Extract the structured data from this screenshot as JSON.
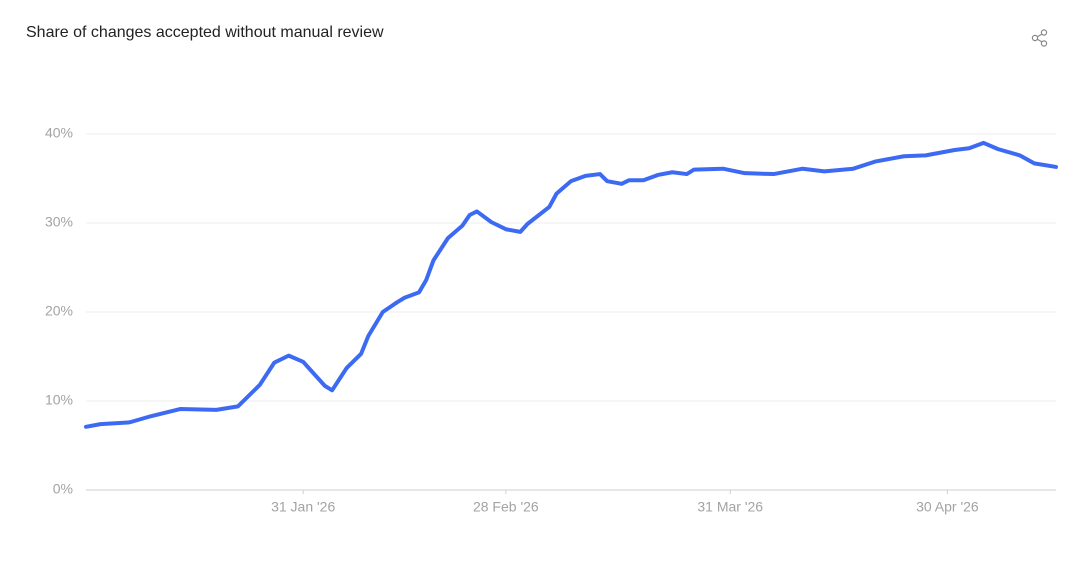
{
  "chart_data": {
    "type": "line",
    "title": "Share of changes accepted without manual review",
    "x": [
      "2026-01-01",
      "2026-01-03",
      "2026-01-07",
      "2026-01-10",
      "2026-01-14",
      "2026-01-19",
      "2026-01-22",
      "2026-01-25",
      "2026-01-27",
      "2026-01-29",
      "2026-01-31",
      "2026-02-01",
      "2026-02-03",
      "2026-02-04",
      "2026-02-06",
      "2026-02-08",
      "2026-02-09",
      "2026-02-11",
      "2026-02-13",
      "2026-02-14",
      "2026-02-16",
      "2026-02-17",
      "2026-02-18",
      "2026-02-20",
      "2026-02-22",
      "2026-02-23",
      "2026-02-24",
      "2026-02-26",
      "2026-02-28",
      "2026-03-02",
      "2026-03-03",
      "2026-03-06",
      "2026-03-07",
      "2026-03-09",
      "2026-03-11",
      "2026-03-13",
      "2026-03-14",
      "2026-03-16",
      "2026-03-17",
      "2026-03-19",
      "2026-03-21",
      "2026-03-23",
      "2026-03-25",
      "2026-03-26",
      "2026-03-30",
      "2026-04-02",
      "2026-04-06",
      "2026-04-10",
      "2026-04-13",
      "2026-04-17",
      "2026-04-20",
      "2026-04-24",
      "2026-04-27",
      "2026-05-01",
      "2026-05-03",
      "2026-05-05",
      "2026-05-07",
      "2026-05-10",
      "2026-05-12",
      "2026-05-15"
    ],
    "series": [
      {
        "color": "#3d6af2",
        "values": [
          7.1,
          7.4,
          7.6,
          8.3,
          9.1,
          9.0,
          9.4,
          11.8,
          14.3,
          15.1,
          14.4,
          13.5,
          11.7,
          11.2,
          13.7,
          15.3,
          17.3,
          20.0,
          21.1,
          21.6,
          22.2,
          23.6,
          25.8,
          28.3,
          29.7,
          30.9,
          31.3,
          30.1,
          29.3,
          29.0,
          29.9,
          31.8,
          33.3,
          34.7,
          35.3,
          35.5,
          34.7,
          34.4,
          34.8,
          34.8,
          35.4,
          35.7,
          35.5,
          36.0,
          36.1,
          35.6,
          35.5,
          36.1,
          35.8,
          36.1,
          36.9,
          37.5,
          37.6,
          38.2,
          38.4,
          39.0,
          38.3,
          37.6,
          36.7,
          36.3
        ]
      }
    ],
    "xlim": [
      "2026-01-01",
      "2026-05-15"
    ],
    "xticks": [
      {
        "value": "2026-01-31",
        "label": "31 Jan '26"
      },
      {
        "value": "2026-02-28",
        "label": "28 Feb '26"
      },
      {
        "value": "2026-03-31",
        "label": "31 Mar '26"
      },
      {
        "value": "2026-04-30",
        "label": "30 Apr '26"
      }
    ],
    "ylim": [
      0,
      40
    ],
    "yticks": [
      {
        "value": 0,
        "label": "0%"
      },
      {
        "value": 10,
        "label": "10%"
      },
      {
        "value": 20,
        "label": "20%"
      },
      {
        "value": 30,
        "label": "30%"
      },
      {
        "value": 40,
        "label": "40%"
      }
    ],
    "grid": true
  }
}
